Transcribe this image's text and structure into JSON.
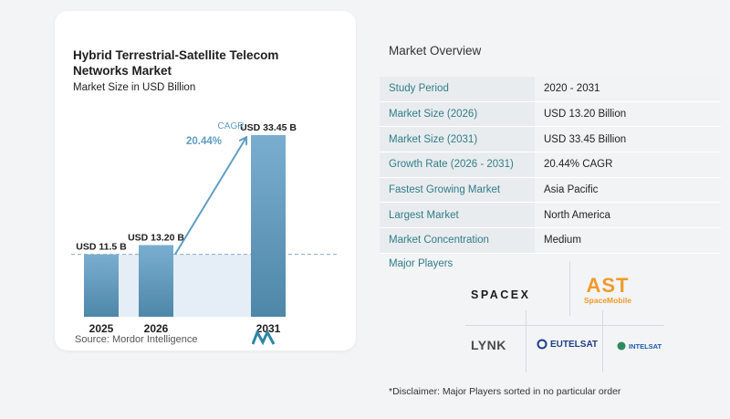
{
  "chart_data": {
    "type": "bar",
    "title": "Hybrid Terrestrial-Satellite Telecom Networks Market",
    "subtitle": "Market Size in USD Billion",
    "categories": [
      "2025",
      "2026",
      "2031"
    ],
    "values": [
      11.5,
      13.2,
      33.45
    ],
    "data_labels": [
      "USD 11.5 B",
      "USD 13.20 B",
      "USD 33.45 B"
    ],
    "cagr_label": "CAGR",
    "cagr_value": "20.44%",
    "ylim": [
      0,
      33.45
    ],
    "colors": {
      "bar_top": "#7aaed0",
      "bar_bottom": "#4e87a8",
      "band": "#e5eef6",
      "arrow": "#5e9dc4",
      "label": "#1d1d1d"
    }
  },
  "source": "Source:  Mordor Intelligence",
  "overview": {
    "title": "Market Overview",
    "rows": [
      {
        "key": "Study Period",
        "value": "2020 - 2031"
      },
      {
        "key": "Market Size (2026)",
        "value": "USD 13.20 Billion"
      },
      {
        "key": "Market Size (2031)",
        "value": "USD 33.45 Billion"
      },
      {
        "key": "Growth Rate (2026 - 2031)",
        "value": "20.44% CAGR"
      },
      {
        "key": "Fastest Growing Market",
        "value": "Asia Pacific"
      },
      {
        "key": "Largest Market",
        "value": "North America"
      },
      {
        "key": "Market Concentration",
        "value": "Medium"
      }
    ]
  },
  "players": {
    "title": "Major Players",
    "logos": {
      "spacex": "SPACEX",
      "ast_big": "AST",
      "ast_small": "SpaceMobile",
      "lynk": "LYNK",
      "eutelsat": "EUTELSAT",
      "intelsat": "INTELSAT"
    }
  },
  "disclaimer": "*Disclaimer: Major Players sorted in no particular order"
}
